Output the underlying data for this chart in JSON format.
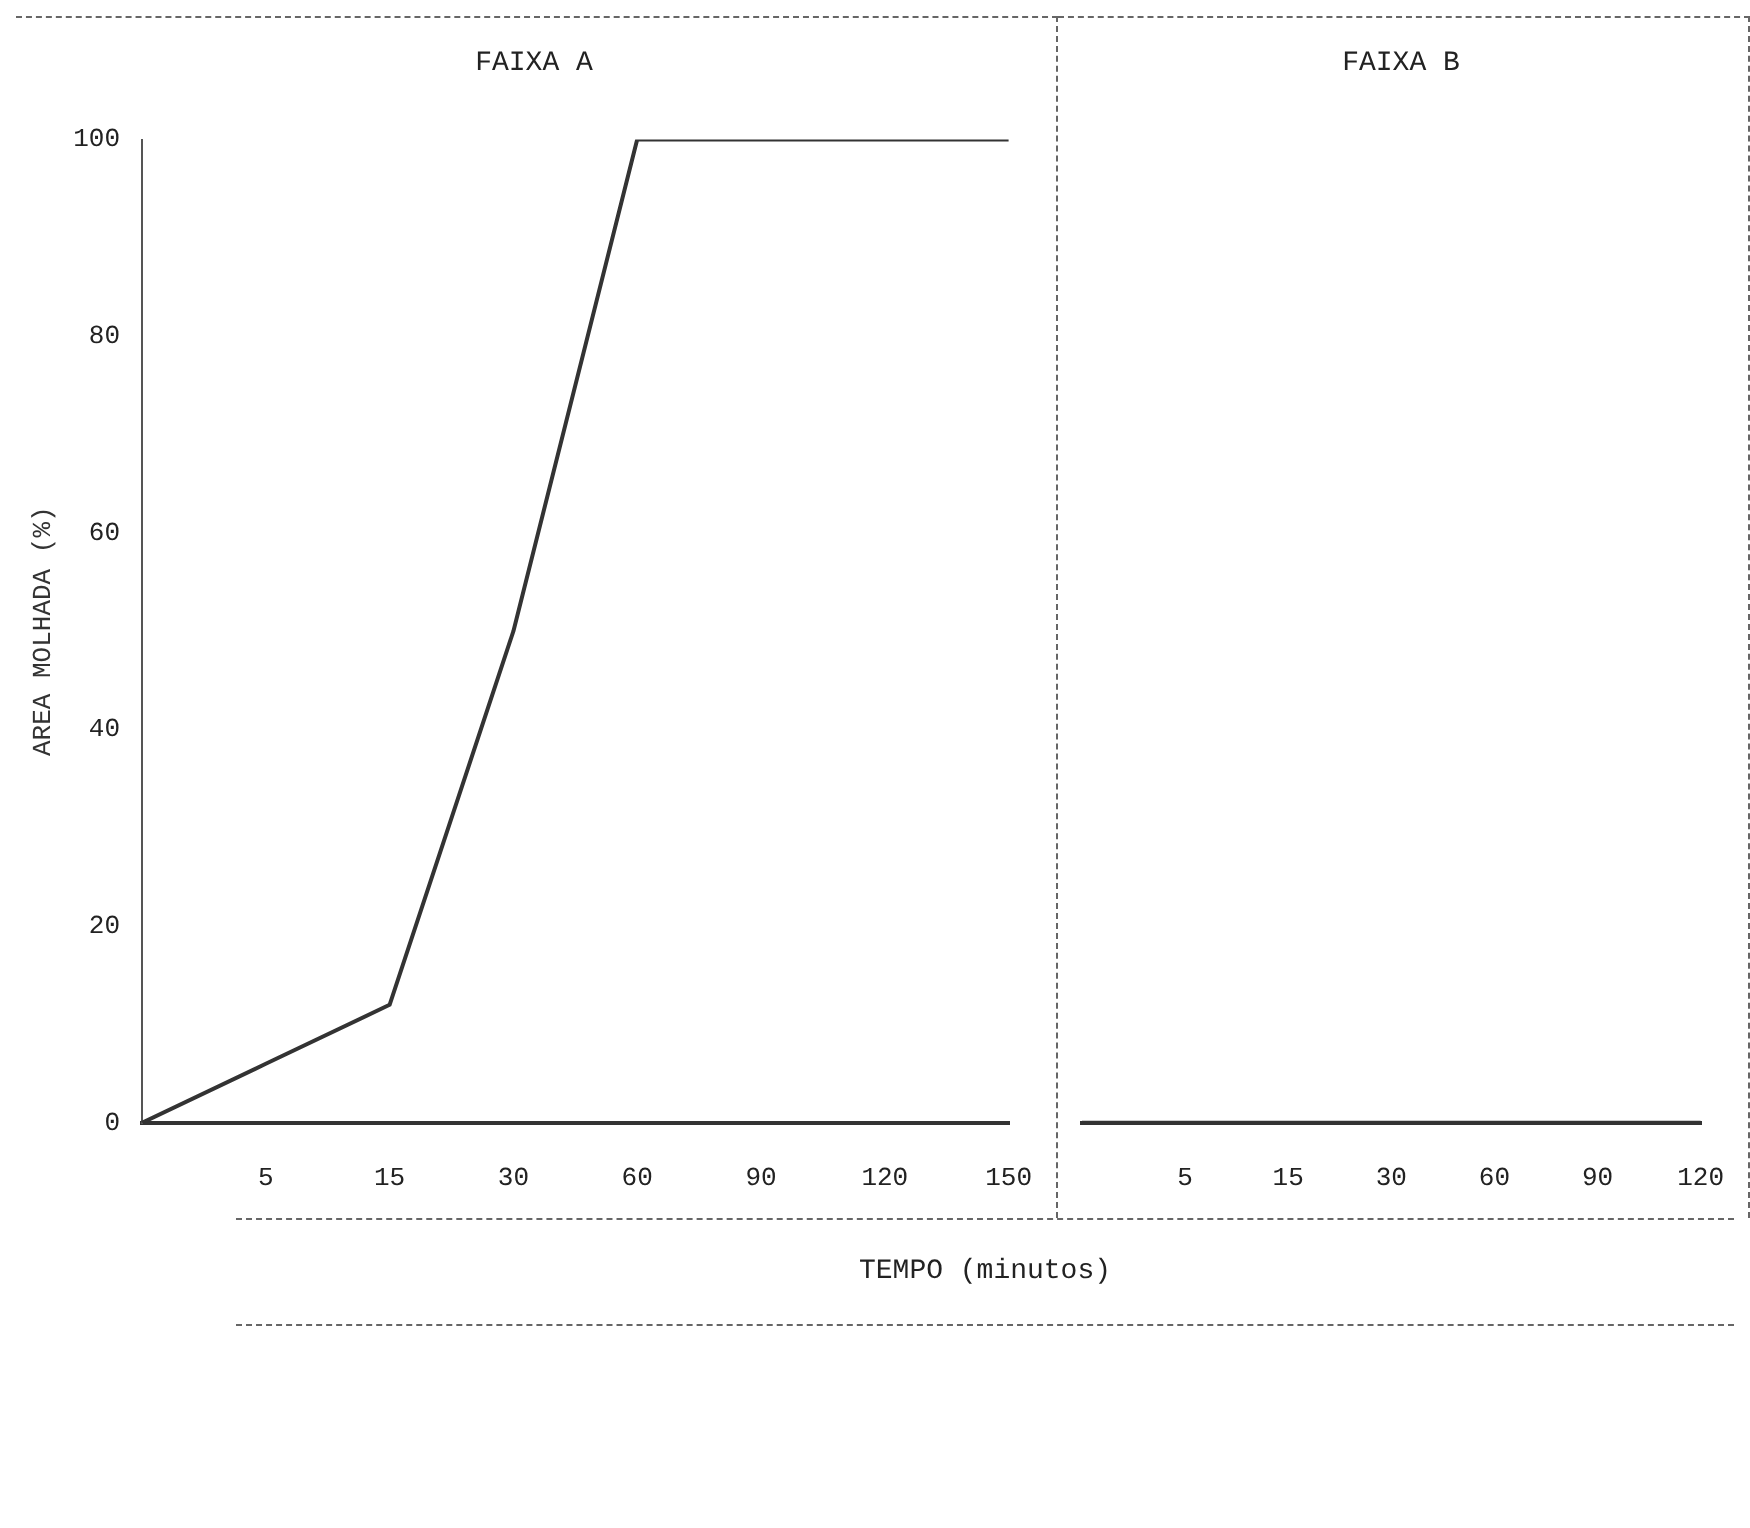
{
  "chart_data": [
    {
      "type": "line",
      "title": "FAIXA A",
      "xlabel": "TEMPO (minutos)",
      "ylabel": "AREA MOLHADA (%)",
      "categories": [
        null,
        "5",
        "15",
        "30",
        "60",
        "90",
        "120",
        "150"
      ],
      "series": [
        {
          "color": "#333333",
          "values": [
            0,
            6,
            12,
            50,
            100,
            100,
            100,
            100
          ]
        }
      ],
      "ylim": [
        0,
        100
      ],
      "yticks": [
        0,
        20,
        40,
        60,
        80,
        100
      ],
      "grid": false,
      "legend": false,
      "marker": "none",
      "line_style": "solid"
    },
    {
      "type": "line",
      "title": "FAIXA B",
      "categories": [
        null,
        "5",
        "15",
        "30",
        "60",
        "90",
        "120"
      ],
      "series": [
        {
          "color": "#333333",
          "values": [
            0,
            0,
            0,
            0,
            0,
            0,
            0
          ]
        }
      ],
      "ylim": [
        0,
        100
      ],
      "yticks": [
        0,
        20,
        40,
        60,
        80,
        100
      ],
      "grid": false,
      "legend": false,
      "marker": "none",
      "line_style": "solid",
      "tick_labels": "x"
    }
  ]
}
